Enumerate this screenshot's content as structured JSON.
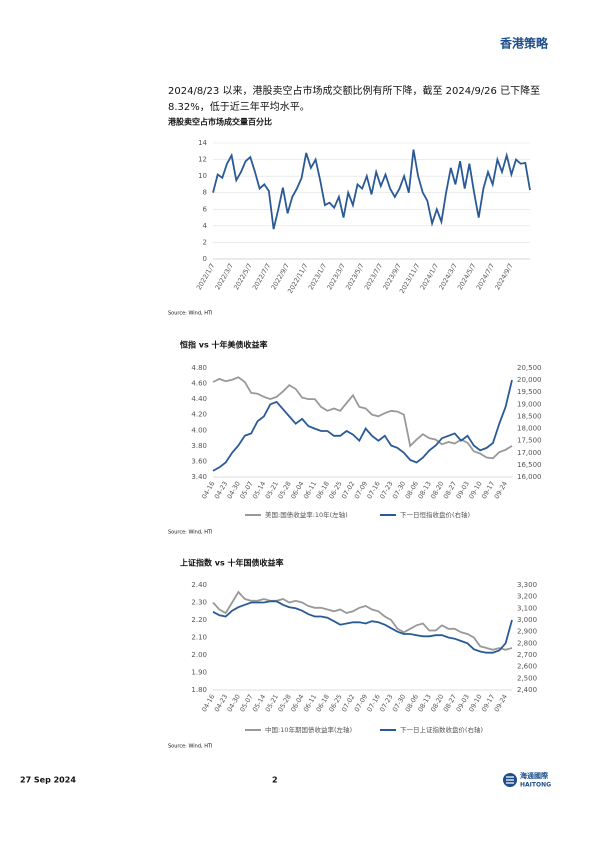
{
  "header": {
    "title": "香港策略"
  },
  "paragraph": "2024/8/23 以来，港股卖空占市场成交额比例有所下降，截至 2024/9/26 已下降至 8.32%，低于近三年平均水平。",
  "chart_data": [
    {
      "type": "line",
      "title": "港股卖空占市场成交量百分比",
      "source": "Source: Wind, HTI",
      "categories": [
        "2022/1/7",
        null,
        null,
        null,
        "2022/3/7",
        null,
        null,
        null,
        "2022/5/7",
        null,
        null,
        null,
        "2022/7/7",
        null,
        null,
        null,
        "2022/9/7",
        null,
        null,
        null,
        "2022/11/7",
        null,
        null,
        null,
        "2023/1/7",
        null,
        null,
        null,
        "2023/3/7",
        null,
        null,
        null,
        "2023/5/7",
        null,
        null,
        null,
        "2023/7/7",
        null,
        null,
        null,
        "2023/9/7",
        null,
        null,
        null,
        "2023/11/7",
        null,
        null,
        null,
        "2024/1/7",
        null,
        null,
        null,
        "2024/3/7",
        null,
        null,
        null,
        "2024/5/7",
        null,
        null,
        null,
        "2024/7/7",
        null,
        null,
        null,
        "2024/9/7",
        null,
        null,
        null,
        null
      ],
      "series": [
        {
          "color": "#2a5a96",
          "values": [
            8,
            10.2,
            9.8,
            11.5,
            12.5,
            9.5,
            10.5,
            11.8,
            12.3,
            10.5,
            8.5,
            9.0,
            8.2,
            3.6,
            6.0,
            8.6,
            5.5,
            7.5,
            8.5,
            9.8,
            12.8,
            11.0,
            12.0,
            9.5,
            6.5,
            6.8,
            6.2,
            7.5,
            5.0,
            8.0,
            6.5,
            9.0,
            8.5,
            10.0,
            7.8,
            10.5,
            8.8,
            10.2,
            8.5,
            7.5,
            8.5,
            10.0,
            8.0,
            13.2,
            10.0,
            8.0,
            7.0,
            4.3,
            6.0,
            4.5,
            8.0,
            11.0,
            9.0,
            11.8,
            8.5,
            11.5,
            8.0,
            5.0,
            8.5,
            10.5,
            9.0,
            12.0,
            10.5,
            12.5,
            10.2,
            12.0,
            11.5,
            11.6,
            8.32
          ]
        }
      ],
      "ylim": [
        0,
        14
      ],
      "yticks": [
        0,
        2,
        4,
        6,
        8,
        10,
        12,
        14
      ],
      "grid": true
    },
    {
      "type": "line",
      "title": "恒指 vs 十年美债收益率",
      "source": "Source: Wind, HTI",
      "categories": [
        "04-16",
        null,
        "04-23",
        null,
        "04-30",
        null,
        "05-07",
        null,
        "05-14",
        null,
        "05-21",
        null,
        "05-28",
        null,
        "06-04",
        null,
        "06-11",
        null,
        "06-18",
        null,
        "06-25",
        null,
        "07-02",
        null,
        "07-09",
        null,
        "07-16",
        null,
        "07-23",
        null,
        "07-30",
        null,
        "08-06",
        null,
        "08-13",
        null,
        "08-20",
        null,
        "08-27",
        null,
        "09-03",
        null,
        "09-10",
        null,
        "09-17",
        null,
        "09-24",
        null
      ],
      "series": [
        {
          "name": "美国:国债收益率:10年(左轴)",
          "color": "#999999",
          "values": [
            4.62,
            4.66,
            4.63,
            4.65,
            4.68,
            4.62,
            4.48,
            4.47,
            4.43,
            4.4,
            4.43,
            4.5,
            4.58,
            4.53,
            4.42,
            4.4,
            4.4,
            4.3,
            4.25,
            4.28,
            4.25,
            4.35,
            4.45,
            4.3,
            4.28,
            4.2,
            4.18,
            4.22,
            4.25,
            4.24,
            4.2,
            3.8,
            3.88,
            3.95,
            3.9,
            3.88,
            3.82,
            3.85,
            3.83,
            3.88,
            3.84,
            3.73,
            3.7,
            3.65,
            3.64,
            3.72,
            3.75,
            3.8
          ]
        },
        {
          "name": "下一日恒指收盘价(右轴)",
          "color": "#2a5a96",
          "axis": "y2",
          "values": [
            16250,
            16400,
            16600,
            17000,
            17300,
            17700,
            17800,
            18300,
            18500,
            19000,
            19100,
            18800,
            18500,
            18200,
            18400,
            18100,
            18000,
            17900,
            17900,
            17700,
            17700,
            17900,
            17750,
            17500,
            18000,
            17700,
            17500,
            17700,
            17300,
            17200,
            17000,
            16700,
            16600,
            16800,
            17100,
            17300,
            17600,
            17700,
            17800,
            17500,
            17700,
            17300,
            17100,
            17200,
            17400,
            18200,
            18900,
            20000
          ]
        }
      ],
      "ylim": [
        3.4,
        4.8
      ],
      "yticks": [
        {
          "value": 3.4,
          "label": "3.40"
        },
        {
          "value": 3.6,
          "label": "3.60"
        },
        {
          "value": 3.8,
          "label": "3.80"
        },
        {
          "value": 4,
          "label": "4.00"
        },
        {
          "value": 4.2,
          "label": "4.20"
        },
        {
          "value": 4.4,
          "label": "4.40"
        },
        {
          "value": 4.6,
          "label": "4.60"
        },
        {
          "value": 4.8,
          "label": "4.80"
        }
      ],
      "y2lim": [
        16000,
        20500
      ],
      "y2ticks": [
        {
          "value": 16000,
          "label": "16,000"
        },
        {
          "value": 16500,
          "label": "16,500"
        },
        {
          "value": 17000,
          "label": "17,000"
        },
        {
          "value": 17500,
          "label": "17,500"
        },
        {
          "value": 18000,
          "label": "18,000"
        },
        {
          "value": 18500,
          "label": "18,500"
        },
        {
          "value": 19000,
          "label": "19,000"
        },
        {
          "value": 19500,
          "label": "19,500"
        },
        {
          "value": 20000,
          "label": "20,000"
        },
        {
          "value": 20500,
          "label": "20,500"
        }
      ],
      "grid": false
    },
    {
      "type": "line",
      "title": "上证指数 vs 十年国债收益率",
      "source": "Source: Wind, HTI",
      "categories": [
        "04-16",
        null,
        "04-23",
        null,
        "04-30",
        null,
        "05-07",
        null,
        "05-14",
        null,
        "05-21",
        null,
        "05-28",
        null,
        "06-04",
        null,
        "06-11",
        null,
        "06-18",
        null,
        "06-25",
        null,
        "07-02",
        null,
        "07-09",
        null,
        "07-16",
        null,
        "07-23",
        null,
        "07-30",
        null,
        "08-06",
        null,
        "08-13",
        null,
        "08-20",
        null,
        "08-27",
        null,
        "09-03",
        null,
        "09-10",
        null,
        "09-17",
        null,
        "09-24",
        null
      ],
      "series": [
        {
          "name": "中国:10年期国债收益率(左轴)",
          "color": "#999999",
          "values": [
            2.3,
            2.26,
            2.24,
            2.3,
            2.36,
            2.32,
            2.31,
            2.31,
            2.32,
            2.31,
            2.31,
            2.32,
            2.3,
            2.31,
            2.3,
            2.28,
            2.27,
            2.27,
            2.26,
            2.25,
            2.26,
            2.24,
            2.25,
            2.27,
            2.28,
            2.26,
            2.25,
            2.22,
            2.2,
            2.15,
            2.13,
            2.15,
            2.17,
            2.18,
            2.14,
            2.14,
            2.17,
            2.15,
            2.15,
            2.13,
            2.12,
            2.1,
            2.05,
            2.04,
            2.03,
            2.04,
            2.03,
            2.04
          ]
        },
        {
          "name": "下一日上证指数收盘价(右轴)",
          "color": "#2a5a96",
          "axis": "y2",
          "values": [
            3070,
            3040,
            3030,
            3080,
            3110,
            3130,
            3150,
            3150,
            3150,
            3160,
            3160,
            3130,
            3110,
            3100,
            3080,
            3050,
            3030,
            3030,
            3020,
            2990,
            2960,
            2970,
            2980,
            2980,
            2970,
            2990,
            2980,
            2960,
            2930,
            2900,
            2880,
            2880,
            2870,
            2860,
            2860,
            2870,
            2870,
            2850,
            2840,
            2820,
            2800,
            2750,
            2730,
            2720,
            2720,
            2740,
            2800,
            3000
          ]
        }
      ],
      "ylim": [
        1.8,
        2.4
      ],
      "yticks": [
        {
          "value": 1.8,
          "label": "1.80"
        },
        {
          "value": 1.9,
          "label": "1.90"
        },
        {
          "value": 2,
          "label": "2.00"
        },
        {
          "value": 2.1,
          "label": "2.10"
        },
        {
          "value": 2.2,
          "label": "2.20"
        },
        {
          "value": 2.3,
          "label": "2.30"
        },
        {
          "value": 2.4,
          "label": "2.40"
        }
      ],
      "y2lim": [
        2400,
        3300
      ],
      "y2ticks": [
        {
          "value": 2400,
          "label": "2,400"
        },
        {
          "value": 2500,
          "label": "2,500"
        },
        {
          "value": 2600,
          "label": "2,600"
        },
        {
          "value": 2700,
          "label": "2,700"
        },
        {
          "value": 2800,
          "label": "2,800"
        },
        {
          "value": 2900,
          "label": "2,900"
        },
        {
          "value": 3000,
          "label": "3,000"
        },
        {
          "value": 3100,
          "label": "3,100"
        },
        {
          "value": 3200,
          "label": "3,200"
        },
        {
          "value": 3300,
          "label": "3,300"
        }
      ],
      "grid": false
    }
  ],
  "footer": {
    "date": "27 Sep 2024",
    "page": "2",
    "logo_cn": "海通國際",
    "logo_en": "HAITONG"
  }
}
